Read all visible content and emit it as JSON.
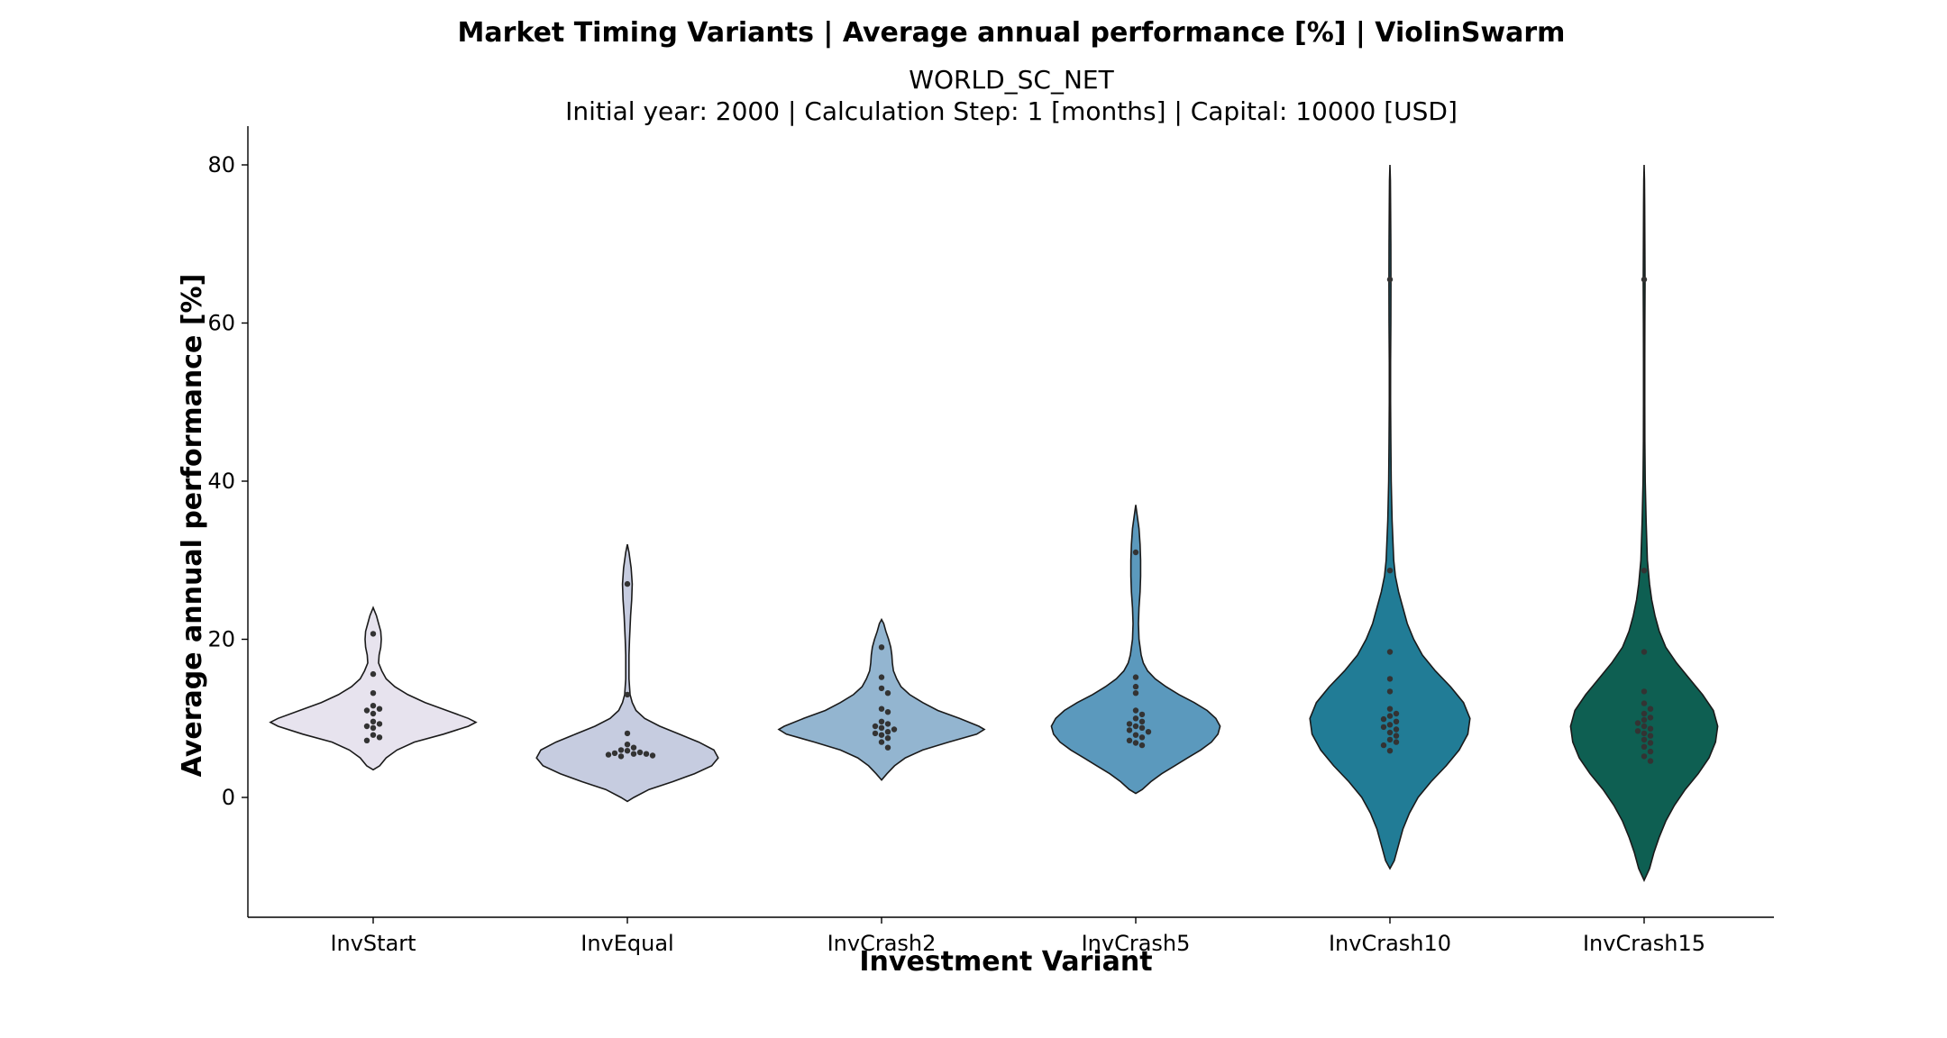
{
  "chart_data": {
    "type": "violin",
    "title": "Market Timing Variants | Average annual performance [%] | ViolinSwarm",
    "subtitle_lines": [
      "WORLD_SC_NET",
      "Initial year: 2000 | Calculation Step: 1 [months] | Capital: 10000 [USD]"
    ],
    "xlabel": "Investment Variant",
    "ylabel": "Average annual performance [%]",
    "ylim": [
      -15,
      85
    ],
    "yticks": [
      0,
      20,
      40,
      60,
      80
    ],
    "grid": false,
    "categories": [
      "InvStart",
      "InvEqual",
      "InvCrash2",
      "InvCrash5",
      "InvCrash10",
      "InvCrash15"
    ],
    "violins": [
      {
        "category": "InvStart",
        "color": "#E7E3EE",
        "profile": [
          [
            3.5,
            0.0
          ],
          [
            4,
            0.06
          ],
          [
            5,
            0.12
          ],
          [
            6,
            0.22
          ],
          [
            7,
            0.38
          ],
          [
            8,
            0.65
          ],
          [
            9,
            0.88
          ],
          [
            9.5,
            0.95
          ],
          [
            10,
            0.88
          ],
          [
            11,
            0.68
          ],
          [
            12,
            0.48
          ],
          [
            13,
            0.32
          ],
          [
            14,
            0.2
          ],
          [
            15,
            0.12
          ],
          [
            16,
            0.08
          ],
          [
            17,
            0.05
          ],
          [
            18,
            0.055
          ],
          [
            19,
            0.07
          ],
          [
            20,
            0.075
          ],
          [
            21,
            0.07
          ],
          [
            22,
            0.05
          ],
          [
            23,
            0.03
          ],
          [
            24,
            0.0
          ]
        ],
        "points": [
          20.7,
          15.6,
          13.2,
          11.6,
          11.2,
          11.0,
          10.6,
          9.6,
          9.3,
          9.0,
          8.8,
          7.9,
          7.6,
          7.2
        ]
      },
      {
        "category": "InvEqual",
        "color": "#C6CCE0",
        "profile": [
          [
            -0.5,
            0.0
          ],
          [
            0,
            0.06
          ],
          [
            1,
            0.2
          ],
          [
            2,
            0.42
          ],
          [
            3,
            0.62
          ],
          [
            4,
            0.78
          ],
          [
            5,
            0.84
          ],
          [
            6,
            0.8
          ],
          [
            7,
            0.66
          ],
          [
            8,
            0.48
          ],
          [
            9,
            0.3
          ],
          [
            10,
            0.16
          ],
          [
            11,
            0.08
          ],
          [
            12,
            0.045
          ],
          [
            13,
            0.025
          ],
          [
            15,
            0.015
          ],
          [
            18,
            0.015
          ],
          [
            20,
            0.02
          ],
          [
            23,
            0.03
          ],
          [
            25,
            0.04
          ],
          [
            27,
            0.045
          ],
          [
            29,
            0.035
          ],
          [
            31,
            0.015
          ],
          [
            32,
            0.0
          ]
        ],
        "points": [
          27.0,
          13.0,
          8.1,
          6.7,
          6.3,
          6.0,
          5.9,
          5.7,
          5.6,
          5.5,
          5.5,
          5.4,
          5.3,
          5.2
        ]
      },
      {
        "category": "InvCrash2",
        "color": "#93B5D0",
        "profile": [
          [
            2.2,
            0.0
          ],
          [
            3,
            0.05
          ],
          [
            4,
            0.12
          ],
          [
            5,
            0.22
          ],
          [
            6,
            0.38
          ],
          [
            7,
            0.62
          ],
          [
            8,
            0.88
          ],
          [
            8.6,
            0.95
          ],
          [
            9,
            0.9
          ],
          [
            10,
            0.72
          ],
          [
            11,
            0.52
          ],
          [
            12,
            0.38
          ],
          [
            13,
            0.26
          ],
          [
            14,
            0.18
          ],
          [
            15,
            0.14
          ],
          [
            16,
            0.11
          ],
          [
            17,
            0.1
          ],
          [
            18,
            0.095
          ],
          [
            19,
            0.085
          ],
          [
            20,
            0.065
          ],
          [
            21,
            0.04
          ],
          [
            22,
            0.02
          ],
          [
            22.5,
            0.0
          ]
        ],
        "points": [
          19.0,
          15.2,
          13.8,
          13.2,
          11.2,
          10.8,
          9.6,
          9.3,
          9.0,
          8.8,
          8.6,
          8.3,
          8.1,
          7.9,
          7.5,
          7.0,
          6.3
        ]
      },
      {
        "category": "InvCrash5",
        "color": "#5B99BD",
        "profile": [
          [
            0.5,
            0.0
          ],
          [
            1,
            0.06
          ],
          [
            2,
            0.14
          ],
          [
            3,
            0.24
          ],
          [
            4,
            0.36
          ],
          [
            5,
            0.48
          ],
          [
            6,
            0.6
          ],
          [
            7,
            0.7
          ],
          [
            8,
            0.76
          ],
          [
            9,
            0.78
          ],
          [
            10,
            0.74
          ],
          [
            11,
            0.66
          ],
          [
            12,
            0.54
          ],
          [
            13,
            0.4
          ],
          [
            14,
            0.28
          ],
          [
            15,
            0.18
          ],
          [
            16,
            0.11
          ],
          [
            17,
            0.07
          ],
          [
            18,
            0.05
          ],
          [
            20,
            0.03
          ],
          [
            22,
            0.025
          ],
          [
            24,
            0.03
          ],
          [
            26,
            0.04
          ],
          [
            28,
            0.045
          ],
          [
            30,
            0.045
          ],
          [
            32,
            0.04
          ],
          [
            34,
            0.03
          ],
          [
            36,
            0.01
          ],
          [
            37,
            0.0
          ]
        ],
        "points": [
          31.0,
          15.2,
          14.0,
          13.2,
          11.0,
          10.5,
          10.0,
          9.6,
          9.3,
          9.0,
          8.8,
          8.5,
          8.3,
          7.9,
          7.6,
          7.2,
          6.9,
          6.6
        ]
      },
      {
        "category": "InvCrash10",
        "color": "#217C96",
        "profile": [
          [
            -9,
            0.0
          ],
          [
            -8,
            0.04
          ],
          [
            -6,
            0.08
          ],
          [
            -4,
            0.12
          ],
          [
            -2,
            0.18
          ],
          [
            0,
            0.26
          ],
          [
            2,
            0.38
          ],
          [
            4,
            0.52
          ],
          [
            6,
            0.64
          ],
          [
            8,
            0.72
          ],
          [
            10,
            0.74
          ],
          [
            12,
            0.68
          ],
          [
            14,
            0.56
          ],
          [
            16,
            0.42
          ],
          [
            18,
            0.3
          ],
          [
            20,
            0.22
          ],
          [
            22,
            0.16
          ],
          [
            24,
            0.12
          ],
          [
            26,
            0.08
          ],
          [
            28,
            0.05
          ],
          [
            30,
            0.035
          ],
          [
            35,
            0.02
          ],
          [
            40,
            0.012
          ],
          [
            45,
            0.008
          ],
          [
            50,
            0.006
          ],
          [
            55,
            0.006
          ],
          [
            60,
            0.008
          ],
          [
            65,
            0.009
          ],
          [
            70,
            0.008
          ],
          [
            75,
            0.006
          ],
          [
            78,
            0.004
          ],
          [
            80,
            0.0
          ]
        ],
        "points": [
          65.5,
          28.7,
          18.4,
          15.0,
          13.4,
          11.2,
          10.6,
          10.3,
          9.9,
          9.6,
          9.2,
          8.9,
          8.6,
          8.2,
          7.8,
          7.3,
          7.0,
          6.6,
          5.9
        ]
      },
      {
        "category": "InvCrash15",
        "color": "#0E5F52",
        "profile": [
          [
            -10.5,
            0.0
          ],
          [
            -9,
            0.05
          ],
          [
            -7,
            0.09
          ],
          [
            -5,
            0.14
          ],
          [
            -3,
            0.2
          ],
          [
            -1,
            0.28
          ],
          [
            1,
            0.38
          ],
          [
            3,
            0.5
          ],
          [
            5,
            0.6
          ],
          [
            7,
            0.66
          ],
          [
            9,
            0.68
          ],
          [
            11,
            0.64
          ],
          [
            13,
            0.54
          ],
          [
            15,
            0.42
          ],
          [
            17,
            0.3
          ],
          [
            19,
            0.2
          ],
          [
            21,
            0.14
          ],
          [
            23,
            0.1
          ],
          [
            25,
            0.07
          ],
          [
            27,
            0.05
          ],
          [
            30,
            0.03
          ],
          [
            35,
            0.018
          ],
          [
            40,
            0.01
          ],
          [
            45,
            0.007
          ],
          [
            50,
            0.006
          ],
          [
            55,
            0.006
          ],
          [
            60,
            0.007
          ],
          [
            65,
            0.008
          ],
          [
            70,
            0.007
          ],
          [
            75,
            0.005
          ],
          [
            78,
            0.003
          ],
          [
            80,
            0.0
          ]
        ],
        "points": [
          65.5,
          28.7,
          18.4,
          13.4,
          11.9,
          11.2,
          10.6,
          10.1,
          9.8,
          9.4,
          9.0,
          8.7,
          8.4,
          8.1,
          7.8,
          7.3,
          6.9,
          6.4,
          5.8,
          5.2,
          4.6
        ]
      }
    ]
  }
}
